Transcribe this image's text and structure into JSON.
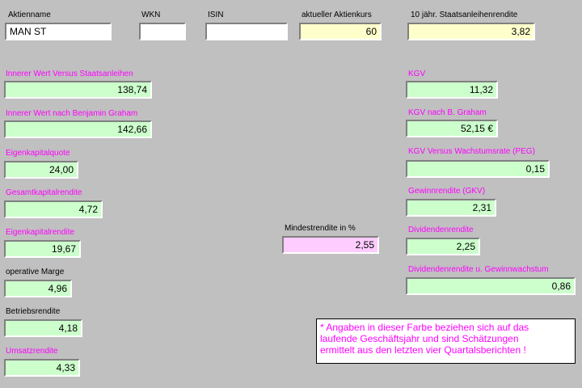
{
  "header": {
    "stock_name_label": "Aktienname",
    "stock_name_value": "MAN ST",
    "wkn_label": "WKN",
    "wkn_value": "",
    "isin_label": "ISIN",
    "isin_value": "",
    "price_label": "aktueller Aktienkurs",
    "price_value": "60",
    "bond_yield_label": "10 jähr. Staatsanleihenrendite",
    "bond_yield_value": "3,82"
  },
  "left": {
    "inner_value_bonds_label": "Innerer Wert Versus Staatsanleihen",
    "inner_value_bonds_value": "138,74",
    "inner_value_graham_label": "Innerer Wert nach Benjamin Graham",
    "inner_value_graham_value": "142,66",
    "equity_ratio_label": "Eigenkapitalquote",
    "equity_ratio_value": "24,00",
    "total_return_label": "Gesamtkapitalrendite",
    "total_return_value": "4,72",
    "equity_return_label": "Eigenkapitalrendite",
    "equity_return_value": "19,67",
    "operating_margin_label": "operative Marge",
    "operating_margin_value": "4,96",
    "operating_return_label": "Betriebsrendite",
    "operating_return_value": "4,18",
    "sales_return_label": "Umsatzrendite",
    "sales_return_value": "4,33"
  },
  "middle": {
    "min_return_label": "Mindestrendite in %",
    "min_return_value": "2,55"
  },
  "right": {
    "kgv_label": "KGV",
    "kgv_value": "11,32",
    "kgv_graham_label": "KGV nach B. Graham",
    "kgv_graham_value": "52,15 €",
    "peg_label": "KGV Versus Wachstumsrate (PEG)",
    "peg_value": "0,15",
    "earnings_yield_label": "Gewinnrendite (GKV)",
    "earnings_yield_value": "2,31",
    "dividend_yield_label": "Dividendenrendite",
    "dividend_yield_value": "2,25",
    "dividend_growth_label": "Dividendenrendite u. Gewinnwachstum",
    "dividend_growth_value": "0,86"
  },
  "note": {
    "line1": "* Angaben in dieser Farbe beziehen sich auf das",
    "line2": "laufende Geschäftsjahr und sind Schätzungen",
    "line3": "ermittelt aus den letzten vier Quartalsberichten !"
  },
  "colors": {
    "background": "#c0c0c0",
    "magenta_label": "#ff00ff",
    "yellow_field": "#ffffcc",
    "green_field": "#ccffcc",
    "pink_field": "#ffccff"
  }
}
